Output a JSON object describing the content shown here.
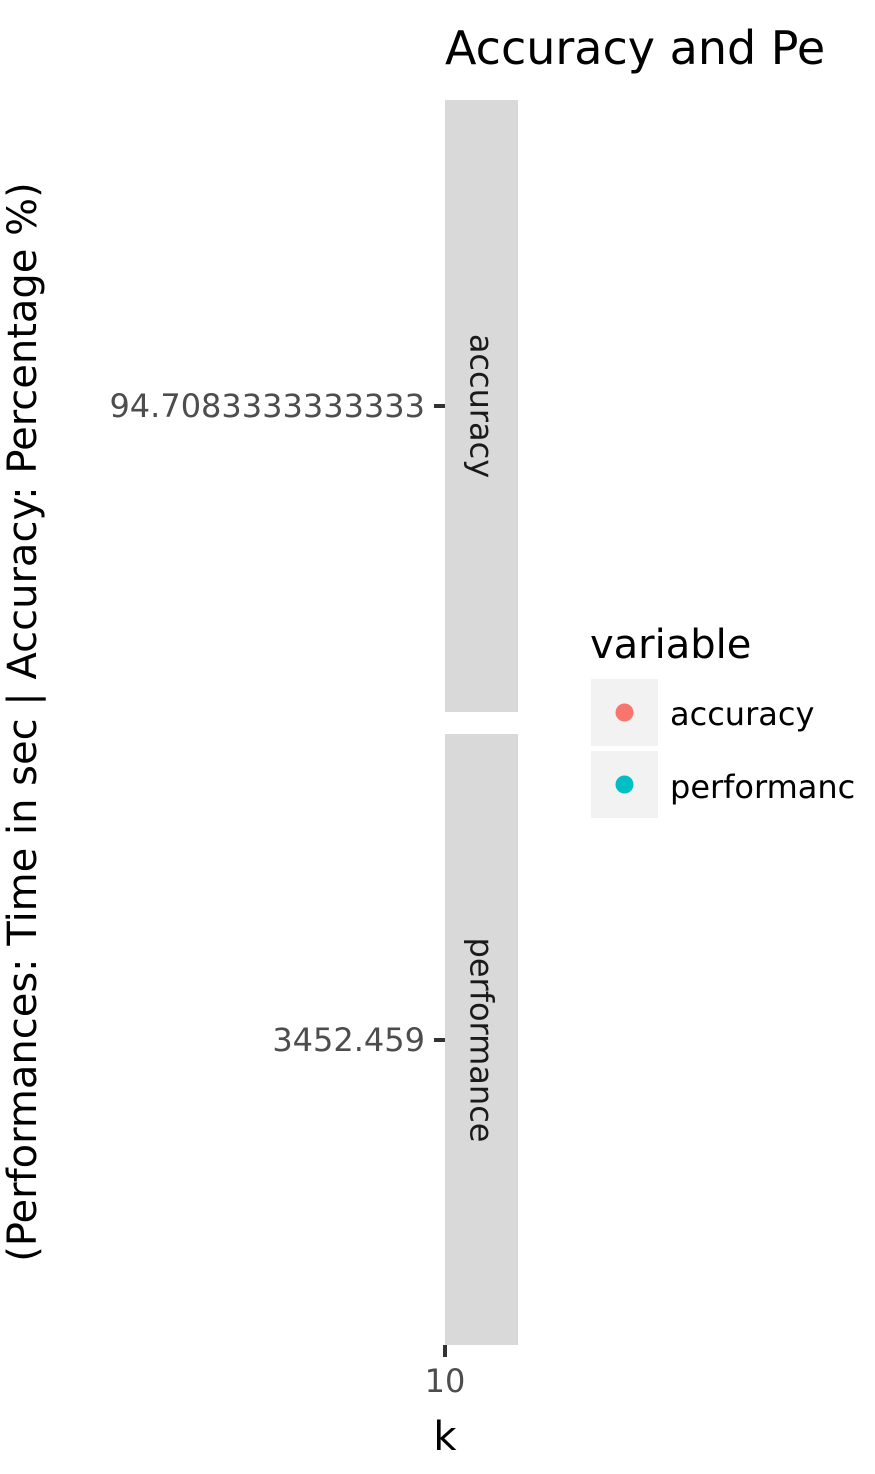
{
  "chart_data": {
    "type": "scatter",
    "title": "Accuracy and Pe",
    "xlabel": "k",
    "ylabel": "(Performances: Time in sec | Accuracy: Percentage %)",
    "x_ticks": [
      "10"
    ],
    "facets": [
      {
        "strip_label": "accuracy",
        "y_tick": "94.7083333333333",
        "points": [
          {
            "x": 10,
            "y": 94.7083333333333
          }
        ]
      },
      {
        "strip_label": "performance",
        "y_tick": "3452.459",
        "points": [
          {
            "x": 10,
            "y": 3452.459
          }
        ]
      }
    ],
    "legend": {
      "title": "variable",
      "position": "right",
      "items": [
        {
          "label": "accuracy",
          "color": "#F8766D"
        },
        {
          "label": "performanc",
          "color": "#00BFC4"
        }
      ]
    },
    "grid": false
  }
}
